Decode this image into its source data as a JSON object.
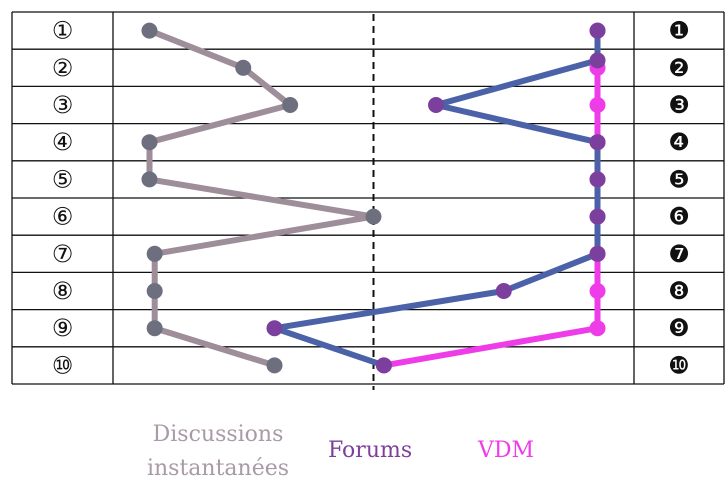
{
  "chart_data": {
    "type": "line",
    "title": "",
    "xlabel": "",
    "ylabel": "",
    "rows_left": [
      "①",
      "②",
      "③",
      "④",
      "⑤",
      "⑥",
      "⑦",
      "⑧",
      "⑨",
      "⑩"
    ],
    "rows_right": [
      "❶",
      "❷",
      "❸",
      "❹",
      "❺",
      "❻",
      "❼",
      "❽",
      "❾",
      "❿"
    ],
    "xlim": [
      0,
      1
    ],
    "center_line": 0.5,
    "series": [
      {
        "name": "Discussions instantanées",
        "color": "#9d8e9a",
        "dot_color": "#6e6f7e",
        "x": [
          0.07,
          0.25,
          0.34,
          0.07,
          0.07,
          0.5,
          0.08,
          0.08,
          0.08,
          0.31
        ],
        "y": [
          1,
          2,
          3,
          4,
          5,
          6,
          7,
          8,
          9,
          10
        ]
      },
      {
        "name": "Forums",
        "color": "#4b62a8",
        "dot_color": "#7b3f9e",
        "x": [
          0.93,
          0.93,
          0.62,
          0.93,
          0.93,
          0.93,
          0.93,
          0.75,
          0.31,
          0.52
        ],
        "y": [
          1,
          1.8,
          3,
          4,
          5,
          6,
          7,
          8,
          9,
          10
        ]
      },
      {
        "name": "VDM",
        "color": "#ee3de8",
        "dot_color": "#ee3de8",
        "x": [
          0.93,
          0.93,
          0.93,
          0.93,
          0.93,
          0.93,
          0.93,
          0.93,
          0.93,
          0.52
        ],
        "y": [
          1,
          2,
          3,
          4,
          5,
          6,
          7,
          8,
          9,
          10
        ]
      }
    ],
    "legend": {
      "disc_line1": "Discussions",
      "disc_line2": "instantanées",
      "forums": "Forums",
      "vdm": "VDM"
    }
  }
}
